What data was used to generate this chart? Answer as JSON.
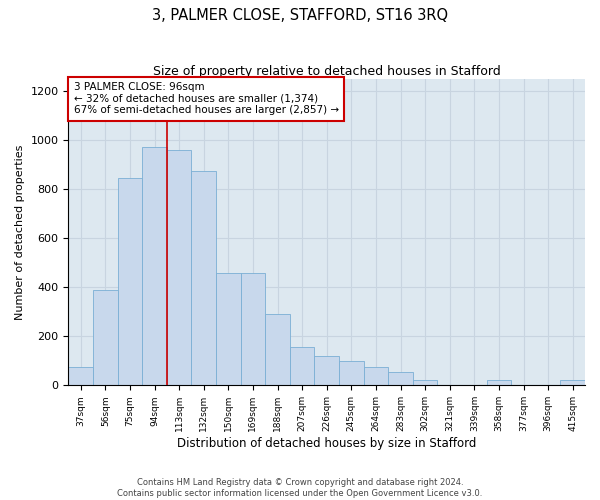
{
  "title": "3, PALMER CLOSE, STAFFORD, ST16 3RQ",
  "subtitle": "Size of property relative to detached houses in Stafford",
  "xlabel": "Distribution of detached houses by size in Stafford",
  "ylabel": "Number of detached properties",
  "categories": [
    "37sqm",
    "56sqm",
    "75sqm",
    "94sqm",
    "113sqm",
    "132sqm",
    "150sqm",
    "169sqm",
    "188sqm",
    "207sqm",
    "226sqm",
    "245sqm",
    "264sqm",
    "283sqm",
    "302sqm",
    "321sqm",
    "339sqm",
    "358sqm",
    "377sqm",
    "396sqm",
    "415sqm"
  ],
  "values": [
    75,
    390,
    845,
    975,
    960,
    875,
    460,
    460,
    290,
    155,
    120,
    100,
    75,
    55,
    20,
    0,
    0,
    20,
    0,
    0,
    20
  ],
  "bar_color": "#c8d8ec",
  "bar_edge_color": "#7aafd4",
  "property_line_x": 3.5,
  "annotation_text": "3 PALMER CLOSE: 96sqm\n← 32% of detached houses are smaller (1,374)\n67% of semi-detached houses are larger (2,857) →",
  "annotation_box_color": "#ffffff",
  "annotation_box_edge": "#cc0000",
  "property_line_color": "#cc0000",
  "grid_color": "#c8d4e0",
  "background_color": "#dde8f0",
  "footer_line1": "Contains HM Land Registry data © Crown copyright and database right 2024.",
  "footer_line2": "Contains public sector information licensed under the Open Government Licence v3.0.",
  "ylim": [
    0,
    1250
  ],
  "yticks": [
    0,
    200,
    400,
    600,
    800,
    1000,
    1200
  ]
}
